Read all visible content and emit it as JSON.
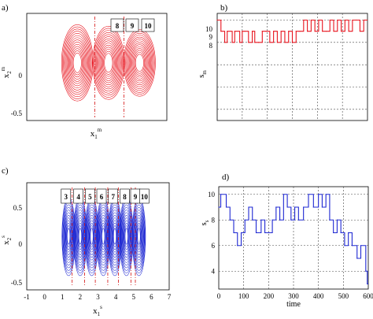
{
  "colors": {
    "master": "#e8141e",
    "slave": "#1e28d2",
    "vline": "#d41010",
    "grid": "#444444"
  },
  "chart_data": [
    {
      "panel": "a)",
      "type": "scatter",
      "xlabel": "x",
      "xlabel_sub": "1",
      "xlabel_sup": "m",
      "ylabel": "x",
      "ylabel_sub": "2",
      "ylabel_sup": "m",
      "yticks": [
        "0",
        "-0.5"
      ],
      "ylim": [
        -0.7,
        0.6
      ],
      "boxes": [
        "8",
        "9",
        "10"
      ],
      "attractors": [
        {
          "cx": 1.3,
          "rx": 0.42,
          "ry": 0.48
        },
        {
          "cx": 2.1,
          "rx": 0.42,
          "ry": 0.46
        },
        {
          "cx": 2.9,
          "rx": 0.42,
          "ry": 0.42
        }
      ],
      "xlim": [
        0,
        3.6
      ]
    },
    {
      "panel": "b)",
      "type": "line",
      "ylabel": "s",
      "ylabel_sub": "m",
      "yticks": [
        "10",
        "9",
        "8"
      ],
      "ylim": [
        1,
        10.6
      ],
      "xlim": [
        0,
        600
      ],
      "x_gridlines": [
        100,
        200,
        300,
        400,
        500
      ],
      "y_gridlines": [
        2,
        4,
        6,
        8,
        10
      ],
      "t": [
        0,
        15,
        30,
        40,
        60,
        70,
        90,
        100,
        110,
        125,
        140,
        150,
        165,
        180,
        195,
        210,
        225,
        240,
        255,
        270,
        285,
        300,
        315,
        330,
        345,
        360,
        375,
        390,
        405,
        420,
        435,
        450,
        465,
        480,
        495,
        510,
        525,
        540,
        555,
        570,
        585
      ],
      "s": [
        10,
        9,
        8,
        9,
        8,
        9,
        8,
        9,
        9,
        8,
        9,
        8,
        8,
        9,
        9,
        8,
        9,
        8,
        9,
        8,
        9,
        8,
        9,
        9,
        10,
        9,
        10,
        9,
        10,
        9,
        9,
        10,
        9,
        10,
        9,
        10,
        9,
        10,
        10,
        9,
        10
      ]
    },
    {
      "panel": "c)",
      "type": "scatter",
      "xlabel": "x",
      "xlabel_sub": "1",
      "xlabel_sup": "s",
      "ylabel": "x",
      "ylabel_sub": "2",
      "ylabel_sup": "s",
      "xticks": [
        "-1",
        "0",
        "1",
        "2",
        "3",
        "4",
        "5",
        "6",
        "7"
      ],
      "xlim": [
        -1,
        7
      ],
      "yticks": [
        "0.5",
        "0",
        "-0.5"
      ],
      "ylim": [
        -0.6,
        0.6
      ],
      "boxes": [
        "3",
        "4",
        "5",
        "6",
        "7",
        "8",
        "9",
        "10"
      ],
      "box_positions": [
        1.2,
        1.9,
        2.55,
        3.2,
        3.85,
        4.5,
        5.1,
        5.6
      ],
      "vlines": [
        1.55,
        2.25,
        2.85,
        3.55,
        4.15,
        4.85,
        5.1
      ],
      "attractors": [
        1.35,
        2.0,
        2.65,
        3.3,
        3.95,
        4.6,
        5.3
      ]
    },
    {
      "panel": "d)",
      "type": "line",
      "xlabel": "time",
      "ylabel": "s",
      "ylabel_sub": "s",
      "xticks": [
        "0",
        "100",
        "200",
        "300",
        "400",
        "500",
        "600"
      ],
      "xlim": [
        0,
        600
      ],
      "yticks": [
        "10",
        "8",
        "6",
        "4"
      ],
      "ylim": [
        2.6,
        10.6
      ],
      "x_gridlines": [
        100,
        200,
        300,
        400,
        500
      ],
      "y_gridlines": [
        4,
        6,
        8,
        10
      ],
      "t": [
        0,
        8,
        30,
        45,
        60,
        75,
        90,
        105,
        120,
        135,
        150,
        170,
        185,
        200,
        215,
        230,
        245,
        260,
        275,
        290,
        305,
        320,
        340,
        360,
        380,
        400,
        415,
        430,
        445,
        460,
        475,
        490,
        505,
        520,
        535,
        555,
        570,
        590,
        596
      ],
      "s": [
        9,
        10,
        9,
        8,
        7,
        6,
        7,
        8,
        9,
        8,
        7,
        8,
        7,
        7,
        8,
        9,
        8,
        10,
        9,
        8,
        9,
        8,
        9,
        10,
        9,
        10,
        9,
        10,
        8,
        7,
        8,
        7,
        6,
        7,
        6,
        5,
        6,
        4,
        3
      ]
    }
  ]
}
